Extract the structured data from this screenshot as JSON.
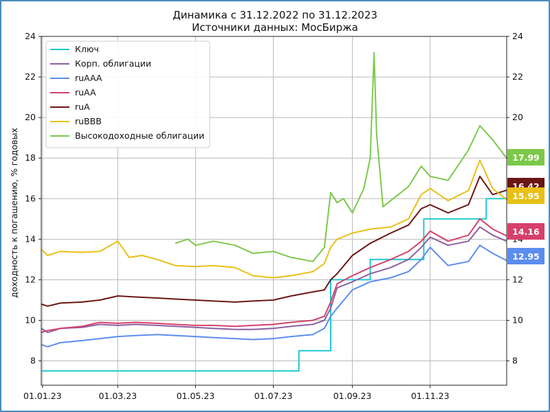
{
  "chart_data": {
    "type": "line",
    "title": "Динамика с 31.12.2022 по 31.12.2023",
    "subtitle": "Источники данных: МосБиржа",
    "ylabel": "доходность к погашению, % годовых",
    "xlabel": "",
    "ylim": [
      6.8,
      24
    ],
    "xlim": [
      "2022-12-31",
      "2023-12-31"
    ],
    "y_ticks": [
      "8",
      "10",
      "12",
      "14",
      "16",
      "18",
      "20",
      "22",
      "24"
    ],
    "x_ticks": [
      {
        "date": "2023-01-01",
        "label": "01.01.23"
      },
      {
        "date": "2023-03-01",
        "label": "01.03.23"
      },
      {
        "date": "2023-05-01",
        "label": "01.05.23"
      },
      {
        "date": "2023-07-01",
        "label": "01.07.23"
      },
      {
        "date": "2023-09-01",
        "label": "01.09.23"
      },
      {
        "date": "2023-11-01",
        "label": "01.11.23"
      }
    ],
    "grid": true,
    "legend_position": "top-left",
    "series": [
      {
        "name": "Ключ",
        "color": "#1ec8d2",
        "step": true,
        "x": [
          "2022-12-31",
          "2023-07-21",
          "2023-08-14",
          "2023-08-15",
          "2023-09-15",
          "2023-10-27",
          "2023-12-15",
          "2023-12-31"
        ],
        "y": [
          7.5,
          8.5,
          8.5,
          12.0,
          13.0,
          15.0,
          16.0,
          16.0
        ]
      },
      {
        "name": "Корп. облигации",
        "color": "#8c5fa0",
        "x": [
          "2022-12-31",
          "2023-01-05",
          "2023-01-15",
          "2023-02-01",
          "2023-02-15",
          "2023-03-01",
          "2023-03-15",
          "2023-04-01",
          "2023-04-15",
          "2023-05-01",
          "2023-05-15",
          "2023-06-01",
          "2023-06-15",
          "2023-07-01",
          "2023-07-15",
          "2023-08-01",
          "2023-08-10",
          "2023-08-15",
          "2023-08-20",
          "2023-09-01",
          "2023-09-15",
          "2023-10-01",
          "2023-10-15",
          "2023-10-25",
          "2023-11-01",
          "2023-11-15",
          "2023-12-01",
          "2023-12-10",
          "2023-12-20",
          "2023-12-31"
        ],
        "y": [
          9.6,
          9.4,
          9.6,
          9.65,
          9.8,
          9.75,
          9.8,
          9.75,
          9.7,
          9.65,
          9.6,
          9.55,
          9.55,
          9.6,
          9.7,
          9.8,
          10.0,
          10.6,
          11.6,
          11.9,
          12.3,
          12.6,
          13.0,
          13.6,
          14.1,
          13.7,
          13.9,
          14.6,
          14.2,
          13.9
        ]
      },
      {
        "name": "ruAAA",
        "color": "#5b8def",
        "x": [
          "2022-12-31",
          "2023-01-05",
          "2023-01-15",
          "2023-02-01",
          "2023-02-15",
          "2023-03-01",
          "2023-03-15",
          "2023-04-01",
          "2023-04-15",
          "2023-05-01",
          "2023-05-15",
          "2023-06-01",
          "2023-06-15",
          "2023-07-01",
          "2023-07-15",
          "2023-08-01",
          "2023-08-10",
          "2023-08-15",
          "2023-08-20",
          "2023-09-01",
          "2023-09-15",
          "2023-10-01",
          "2023-10-15",
          "2023-10-25",
          "2023-11-01",
          "2023-11-15",
          "2023-12-01",
          "2023-12-10",
          "2023-12-20",
          "2023-12-31"
        ],
        "y": [
          8.8,
          8.7,
          8.9,
          9.0,
          9.1,
          9.2,
          9.25,
          9.3,
          9.25,
          9.2,
          9.15,
          9.1,
          9.05,
          9.1,
          9.2,
          9.3,
          9.6,
          10.2,
          10.6,
          11.5,
          11.9,
          12.1,
          12.4,
          13.0,
          13.6,
          12.7,
          12.9,
          13.7,
          13.3,
          12.95
        ]
      },
      {
        "name": "ruAA",
        "color": "#d6406a",
        "x": [
          "2022-12-31",
          "2023-01-05",
          "2023-01-15",
          "2023-02-01",
          "2023-02-15",
          "2023-03-01",
          "2023-03-15",
          "2023-04-01",
          "2023-04-15",
          "2023-05-01",
          "2023-05-15",
          "2023-06-01",
          "2023-06-15",
          "2023-07-01",
          "2023-07-15",
          "2023-08-01",
          "2023-08-10",
          "2023-08-15",
          "2023-08-20",
          "2023-09-01",
          "2023-09-15",
          "2023-10-01",
          "2023-10-15",
          "2023-10-25",
          "2023-11-01",
          "2023-11-15",
          "2023-12-01",
          "2023-12-10",
          "2023-12-20",
          "2023-12-31"
        ],
        "y": [
          9.4,
          9.5,
          9.6,
          9.7,
          9.9,
          9.85,
          9.9,
          9.85,
          9.8,
          9.75,
          9.75,
          9.7,
          9.75,
          9.8,
          9.9,
          10.0,
          10.2,
          10.9,
          11.8,
          12.2,
          12.6,
          13.0,
          13.4,
          13.9,
          14.4,
          13.9,
          14.2,
          15.0,
          14.5,
          14.16
        ]
      },
      {
        "name": "ruA",
        "color": "#6b1515",
        "x": [
          "2022-12-31",
          "2023-01-05",
          "2023-01-15",
          "2023-02-01",
          "2023-02-15",
          "2023-03-01",
          "2023-03-15",
          "2023-04-01",
          "2023-04-15",
          "2023-05-01",
          "2023-05-15",
          "2023-06-01",
          "2023-06-15",
          "2023-07-01",
          "2023-07-15",
          "2023-08-01",
          "2023-08-10",
          "2023-08-15",
          "2023-08-20",
          "2023-09-01",
          "2023-09-15",
          "2023-10-01",
          "2023-10-15",
          "2023-10-25",
          "2023-11-01",
          "2023-11-15",
          "2023-12-01",
          "2023-12-10",
          "2023-12-20",
          "2023-12-31"
        ],
        "y": [
          10.8,
          10.7,
          10.85,
          10.9,
          11.0,
          11.2,
          11.15,
          11.1,
          11.05,
          11.0,
          10.95,
          10.9,
          10.95,
          11.0,
          11.2,
          11.4,
          11.5,
          12.0,
          12.3,
          13.2,
          13.8,
          14.3,
          14.7,
          15.5,
          15.7,
          15.3,
          15.7,
          17.1,
          16.2,
          16.42
        ]
      },
      {
        "name": "ruBBB",
        "color": "#e8c017",
        "x": [
          "2022-12-31",
          "2023-01-05",
          "2023-01-15",
          "2023-02-01",
          "2023-02-15",
          "2023-03-01",
          "2023-03-10",
          "2023-03-20",
          "2023-04-01",
          "2023-04-15",
          "2023-05-01",
          "2023-05-15",
          "2023-06-01",
          "2023-06-15",
          "2023-07-01",
          "2023-07-15",
          "2023-08-01",
          "2023-08-10",
          "2023-08-15",
          "2023-08-20",
          "2023-09-01",
          "2023-09-15",
          "2023-10-01",
          "2023-10-15",
          "2023-10-25",
          "2023-11-01",
          "2023-11-15",
          "2023-12-01",
          "2023-12-10",
          "2023-12-20",
          "2023-12-31"
        ],
        "y": [
          13.5,
          13.2,
          13.4,
          13.35,
          13.4,
          13.9,
          13.1,
          13.2,
          13.0,
          12.7,
          12.65,
          12.7,
          12.6,
          12.2,
          12.1,
          12.2,
          12.4,
          12.8,
          13.6,
          14.0,
          14.3,
          14.5,
          14.6,
          15.0,
          16.2,
          16.5,
          15.9,
          16.4,
          17.9,
          16.5,
          15.95
        ]
      },
      {
        "name": "Высокодоходные облигации",
        "color": "#7cc84a",
        "x": [
          "2023-04-15",
          "2023-04-25",
          "2023-05-01",
          "2023-05-15",
          "2023-06-01",
          "2023-06-15",
          "2023-07-01",
          "2023-07-15",
          "2023-08-01",
          "2023-08-10",
          "2023-08-15",
          "2023-08-20",
          "2023-08-25",
          "2023-09-01",
          "2023-09-10",
          "2023-09-15",
          "2023-09-18",
          "2023-09-20",
          "2023-09-25",
          "2023-10-01",
          "2023-10-15",
          "2023-10-25",
          "2023-11-01",
          "2023-11-15",
          "2023-12-01",
          "2023-12-10",
          "2023-12-20",
          "2023-12-31"
        ],
        "y": [
          13.8,
          14.0,
          13.7,
          13.9,
          13.7,
          13.3,
          13.4,
          13.1,
          12.9,
          13.6,
          16.3,
          15.8,
          16.0,
          15.3,
          16.5,
          18.0,
          23.2,
          19.2,
          15.6,
          15.9,
          16.6,
          17.6,
          17.1,
          16.9,
          18.4,
          19.6,
          18.9,
          17.99
        ]
      }
    ],
    "end_labels": [
      {
        "text": "17.99",
        "value": 17.99,
        "color": "#7cc84a"
      },
      {
        "text": "16.42",
        "value": 16.42,
        "color": "#6b1515"
      },
      {
        "text": "15.95",
        "value": 15.95,
        "color": "#e8c017"
      },
      {
        "text": "14.16",
        "value": 14.16,
        "color": "#d6406a"
      },
      {
        "text": "12.95",
        "value": 12.95,
        "color": "#5b8def"
      }
    ]
  }
}
